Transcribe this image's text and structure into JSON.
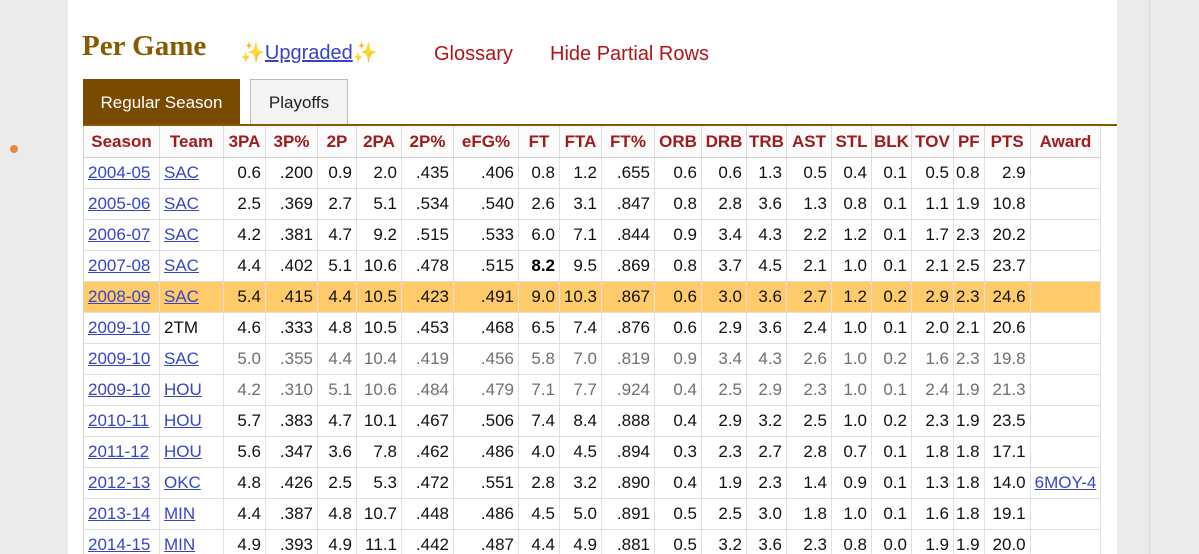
{
  "header": {
    "title": "Per Game",
    "sparkle": "✨",
    "upgraded_label": "Upgraded",
    "glossary_label": "Glossary",
    "hide_partial_label": "Hide Partial Rows"
  },
  "tabs": [
    {
      "label": "Regular Season",
      "active": true
    },
    {
      "label": "Playoffs",
      "active": false
    }
  ],
  "table": {
    "columns": [
      "Season",
      "Team",
      "3PA",
      "3P%",
      "2P",
      "2PA",
      "2P%",
      "eFG%",
      "FT",
      "FTA",
      "FT%",
      "ORB",
      "DRB",
      "TRB",
      "AST",
      "STL",
      "BLK",
      "TOV",
      "PF",
      "PTS",
      "Award"
    ],
    "rows": [
      {
        "season": "2004-05",
        "team": "SAC",
        "team_link": true,
        "stats": [
          "0.6",
          ".200",
          "0.9",
          "2.0",
          ".435",
          ".406",
          "0.8",
          "1.2",
          ".655",
          "0.6",
          "0.6",
          "1.3",
          "0.5",
          "0.4",
          "0.1",
          "0.5",
          "0.8",
          "2.9"
        ],
        "award": "",
        "partial": false,
        "highlight": false
      },
      {
        "season": "2005-06",
        "team": "SAC",
        "team_link": true,
        "stats": [
          "2.5",
          ".369",
          "2.7",
          "5.1",
          ".534",
          ".540",
          "2.6",
          "3.1",
          ".847",
          "0.8",
          "2.8",
          "3.6",
          "1.3",
          "0.8",
          "0.1",
          "1.1",
          "1.9",
          "10.8"
        ],
        "award": "",
        "partial": false,
        "highlight": false
      },
      {
        "season": "2006-07",
        "team": "SAC",
        "team_link": true,
        "stats": [
          "4.2",
          ".381",
          "4.7",
          "9.2",
          ".515",
          ".533",
          "6.0",
          "7.1",
          ".844",
          "0.9",
          "3.4",
          "4.3",
          "2.2",
          "1.2",
          "0.1",
          "1.7",
          "2.3",
          "20.2"
        ],
        "award": "",
        "partial": false,
        "highlight": false
      },
      {
        "season": "2007-08",
        "team": "SAC",
        "team_link": true,
        "stats": [
          "4.4",
          ".402",
          "5.1",
          "10.6",
          ".478",
          ".515",
          "8.2",
          "9.5",
          ".869",
          "0.8",
          "3.7",
          "4.5",
          "2.1",
          "1.0",
          "0.1",
          "2.1",
          "2.5",
          "23.7"
        ],
        "award": "",
        "partial": false,
        "highlight": false,
        "bold_index": 6
      },
      {
        "season": "2008-09",
        "team": "SAC",
        "team_link": true,
        "stats": [
          "5.4",
          ".415",
          "4.4",
          "10.5",
          ".423",
          ".491",
          "9.0",
          "10.3",
          ".867",
          "0.6",
          "3.0",
          "3.6",
          "2.7",
          "1.2",
          "0.2",
          "2.9",
          "2.3",
          "24.6"
        ],
        "award": "",
        "partial": false,
        "highlight": true
      },
      {
        "season": "2009-10",
        "team": "2TM",
        "team_link": false,
        "stats": [
          "4.6",
          ".333",
          "4.8",
          "10.5",
          ".453",
          ".468",
          "6.5",
          "7.4",
          ".876",
          "0.6",
          "2.9",
          "3.6",
          "2.4",
          "1.0",
          "0.1",
          "2.0",
          "2.1",
          "20.6"
        ],
        "award": "",
        "partial": false,
        "highlight": false
      },
      {
        "season": "2009-10",
        "team": "SAC",
        "team_link": true,
        "stats": [
          "5.0",
          ".355",
          "4.4",
          "10.4",
          ".419",
          ".456",
          "5.8",
          "7.0",
          ".819",
          "0.9",
          "3.4",
          "4.3",
          "2.6",
          "1.0",
          "0.2",
          "1.6",
          "2.3",
          "19.8"
        ],
        "award": "",
        "partial": true,
        "highlight": false
      },
      {
        "season": "2009-10",
        "team": "HOU",
        "team_link": true,
        "stats": [
          "4.2",
          ".310",
          "5.1",
          "10.6",
          ".484",
          ".479",
          "7.1",
          "7.7",
          ".924",
          "0.4",
          "2.5",
          "2.9",
          "2.3",
          "1.0",
          "0.1",
          "2.4",
          "1.9",
          "21.3"
        ],
        "award": "",
        "partial": true,
        "highlight": false
      },
      {
        "season": "2010-11",
        "team": "HOU",
        "team_link": true,
        "stats": [
          "5.7",
          ".383",
          "4.7",
          "10.1",
          ".467",
          ".506",
          "7.4",
          "8.4",
          ".888",
          "0.4",
          "2.9",
          "3.2",
          "2.5",
          "1.0",
          "0.2",
          "2.3",
          "1.9",
          "23.5"
        ],
        "award": "",
        "partial": false,
        "highlight": false
      },
      {
        "season": "2011-12",
        "team": "HOU",
        "team_link": true,
        "stats": [
          "5.6",
          ".347",
          "3.6",
          "7.8",
          ".462",
          ".486",
          "4.0",
          "4.5",
          ".894",
          "0.3",
          "2.3",
          "2.7",
          "2.8",
          "0.7",
          "0.1",
          "1.8",
          "1.8",
          "17.1"
        ],
        "award": "",
        "partial": false,
        "highlight": false
      },
      {
        "season": "2012-13",
        "team": "OKC",
        "team_link": true,
        "stats": [
          "4.8",
          ".426",
          "2.5",
          "5.3",
          ".472",
          ".551",
          "2.8",
          "3.2",
          ".890",
          "0.4",
          "1.9",
          "2.3",
          "1.4",
          "0.9",
          "0.1",
          "1.3",
          "1.8",
          "14.0"
        ],
        "award": "6MOY-4",
        "partial": false,
        "highlight": false
      },
      {
        "season": "2013-14",
        "team": "MIN",
        "team_link": true,
        "stats": [
          "4.4",
          ".387",
          "4.8",
          "10.7",
          ".448",
          ".486",
          "4.5",
          "5.0",
          ".891",
          "0.5",
          "2.5",
          "3.0",
          "1.8",
          "1.0",
          "0.1",
          "1.6",
          "1.8",
          "19.1"
        ],
        "award": "",
        "partial": false,
        "highlight": false
      },
      {
        "season": "2014-15",
        "team": "MIN",
        "team_link": true,
        "stats": [
          "4.9",
          ".393",
          "4.9",
          "11.1",
          ".442",
          ".487",
          "4.4",
          "4.9",
          ".881",
          "0.5",
          "3.2",
          "3.6",
          "2.3",
          "0.8",
          "0.0",
          "1.9",
          "1.9",
          "20.0"
        ],
        "award": "",
        "partial": false,
        "highlight": false
      }
    ]
  },
  "colors": {
    "title": "#8a5a00",
    "link": "#3645c8",
    "header_text": "#a01c1c",
    "highlight_row": "#ffcb6a",
    "active_tab": "#7a4a00"
  }
}
